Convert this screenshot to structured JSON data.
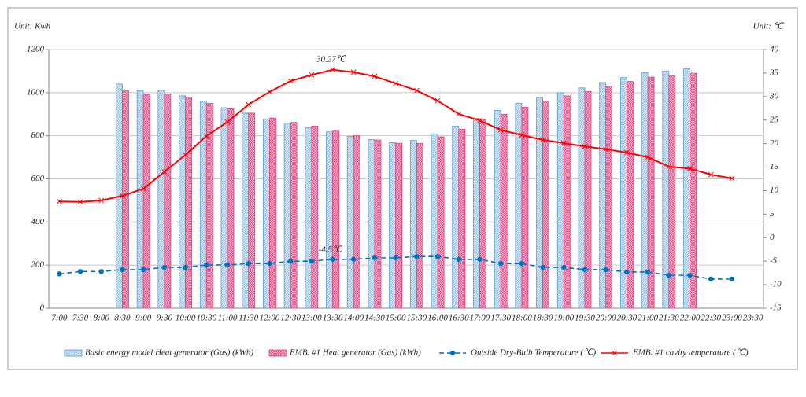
{
  "chart_data": {
    "type": "bar",
    "y_unit": "Unit: Kwh",
    "y2_unit": "Unit: ℃",
    "categories": [
      "7:00",
      "7:30",
      "8:00",
      "8:30",
      "9:00",
      "9:30",
      "10:00",
      "10:30",
      "11:00",
      "11:30",
      "12:00",
      "12:30",
      "13:00",
      "13:30",
      "14:00",
      "14:30",
      "15:00",
      "15:30",
      "16:00",
      "16:30",
      "17:00",
      "17:30",
      "18:00",
      "18:30",
      "19:00",
      "19:30",
      "20:00",
      "20:30",
      "21:00",
      "21:30",
      "22:00",
      "22:30",
      "23:00",
      "23:30"
    ],
    "series": [
      {
        "name": "Basic energy model Heat generator (Gas) (kWh)",
        "type": "bar",
        "color": "#5b9bd5",
        "values": [
          null,
          null,
          null,
          1040,
          1010,
          1010,
          985,
          960,
          930,
          905,
          878,
          858,
          838,
          818,
          797,
          782,
          768,
          778,
          808,
          845,
          880,
          918,
          950,
          978,
          1000,
          1022,
          1047,
          1070,
          1092,
          1100,
          1112,
          null,
          null,
          null
        ]
      },
      {
        "name": "EMB. #1 Heat generator (Gas) (kWh)",
        "type": "bar",
        "color": "#e0407a",
        "values": [
          null,
          null,
          null,
          1008,
          990,
          993,
          975,
          950,
          925,
          905,
          882,
          862,
          845,
          822,
          800,
          780,
          765,
          765,
          795,
          830,
          875,
          900,
          932,
          960,
          985,
          1005,
          1030,
          1052,
          1072,
          1080,
          1090,
          null,
          null,
          null
        ]
      },
      {
        "name": "Outside Dry-Bulb Temperature (℃)",
        "type": "line",
        "axis": "y2",
        "color": "#0070c0",
        "dashed": true,
        "marker": "circle",
        "values": [
          -7.7,
          -7.2,
          -7.2,
          -6.8,
          -6.8,
          -6.3,
          -6.3,
          -5.8,
          -5.8,
          -5.5,
          -5.5,
          -5,
          -5,
          -4.6,
          -4.6,
          -4.3,
          -4.3,
          -4,
          -4,
          -4.6,
          -4.6,
          -5.5,
          -5.5,
          -6.3,
          -6.3,
          -6.8,
          -6.8,
          -7.3,
          -7.3,
          -8,
          -8,
          -8.8,
          -8.8,
          null
        ]
      },
      {
        "name": "EMB. #1 cavity temperature (℃)",
        "type": "line",
        "axis": "y2",
        "color": "#ff0000",
        "marker": "x",
        "values": [
          7.7,
          7.6,
          7.9,
          8.9,
          10.4,
          14,
          17.6,
          21.6,
          24.6,
          28.3,
          31,
          33.3,
          34.6,
          35.7,
          35.2,
          34.3,
          32.8,
          31.3,
          29.1,
          26.3,
          24.9,
          22.9,
          21.8,
          20.8,
          20.1,
          19.4,
          18.8,
          18.1,
          17.1,
          15.1,
          14.7,
          13.4,
          12.6,
          null
        ]
      }
    ],
    "annotations": [
      "30.27℃",
      "-4.5℃"
    ],
    "ylim": [
      0,
      1200
    ],
    "yticks": [
      0,
      200,
      400,
      600,
      800,
      1000,
      1200
    ],
    "y2lim": [
      -15,
      40
    ],
    "y2ticks": [
      -15,
      -10,
      -5,
      0,
      5,
      10,
      15,
      20,
      25,
      30,
      35,
      40
    ],
    "grid": true
  }
}
